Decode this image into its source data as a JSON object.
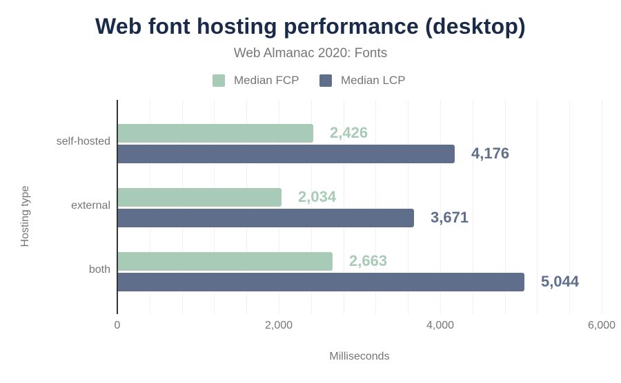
{
  "title": "Web font hosting performance (desktop)",
  "subtitle": "Web Almanac 2020: Fonts",
  "legend": [
    {
      "label": "Median FCP",
      "color": "#a8cbb8"
    },
    {
      "label": "Median LCP",
      "color": "#5f6f8b"
    }
  ],
  "colors": {
    "fcp": "#a8cbb8",
    "lcp": "#5f6f8b",
    "title": "#1a2b49",
    "text_muted": "#757575",
    "gridline": "#f0f0f0",
    "axis": "#333333"
  },
  "axes": {
    "x_title": "Milliseconds",
    "y_title": "Hosting type",
    "x_ticks": [
      "0",
      "2,000",
      "4,000",
      "6,000"
    ]
  },
  "rows": [
    {
      "category": "self-hosted",
      "fcp": 2426,
      "fcp_label": "2,426",
      "lcp": 4176,
      "lcp_label": "4,176"
    },
    {
      "category": "external",
      "fcp": 2034,
      "fcp_label": "2,034",
      "lcp": 3671,
      "lcp_label": "3,671"
    },
    {
      "category": "both",
      "fcp": 2663,
      "fcp_label": "2,663",
      "lcp": 5044,
      "lcp_label": "5,044"
    }
  ],
  "chart_data": {
    "type": "bar",
    "orientation": "horizontal",
    "title": "Web font hosting performance (desktop)",
    "subtitle": "Web Almanac 2020: Fonts",
    "categories": [
      "self-hosted",
      "external",
      "both"
    ],
    "series": [
      {
        "name": "Median FCP",
        "values": [
          2426,
          2034,
          2663
        ],
        "color": "#a8cbb8"
      },
      {
        "name": "Median LCP",
        "values": [
          4176,
          3671,
          5044
        ],
        "color": "#5f6f8b"
      }
    ],
    "xlabel": "Milliseconds",
    "ylabel": "Hosting type",
    "xlim": [
      0,
      6000
    ],
    "x_ticks": [
      0,
      2000,
      4000,
      6000
    ],
    "grid": {
      "vertical": true,
      "step": 400
    },
    "legend_position": "top",
    "data_labels": true
  }
}
